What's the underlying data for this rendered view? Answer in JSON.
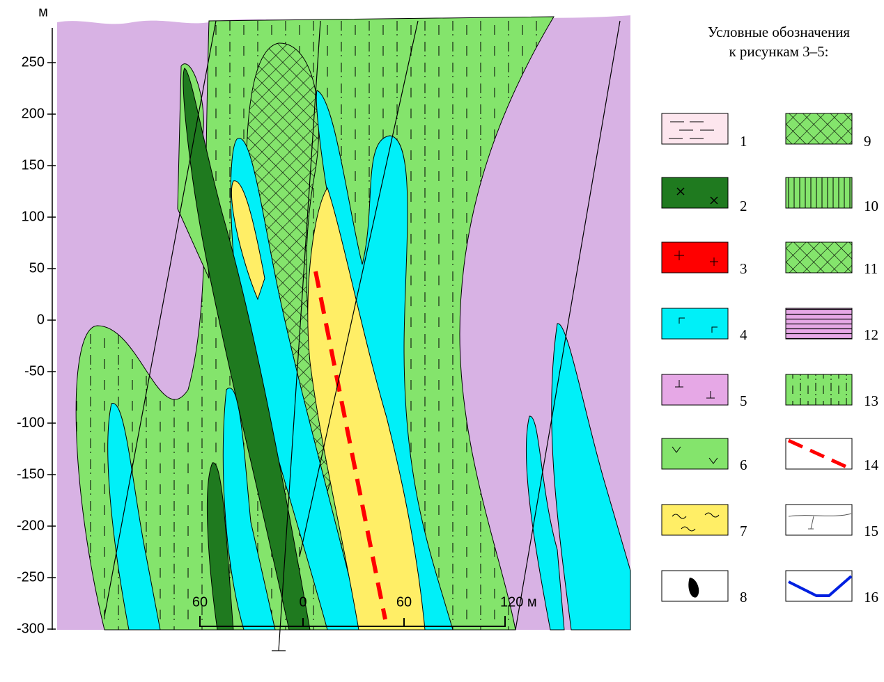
{
  "diagram": {
    "vertical_axis": {
      "unit": "м",
      "labels": [
        "250",
        "200",
        "150",
        "100",
        "50",
        "0",
        "-50",
        "-100",
        "-150",
        "-200",
        "-250",
        "-300"
      ]
    },
    "scale_bar": {
      "labels": [
        "60",
        "0",
        "60",
        "120 м"
      ]
    },
    "legend": {
      "title": [
        "Условные обозначения",
        "к рисункам 3–5:"
      ],
      "items": [
        "1",
        "2",
        "3",
        "4",
        "5",
        "6",
        "7",
        "8",
        "9",
        "10",
        "11",
        "12",
        "13",
        "14",
        "15",
        "16"
      ]
    }
  }
}
